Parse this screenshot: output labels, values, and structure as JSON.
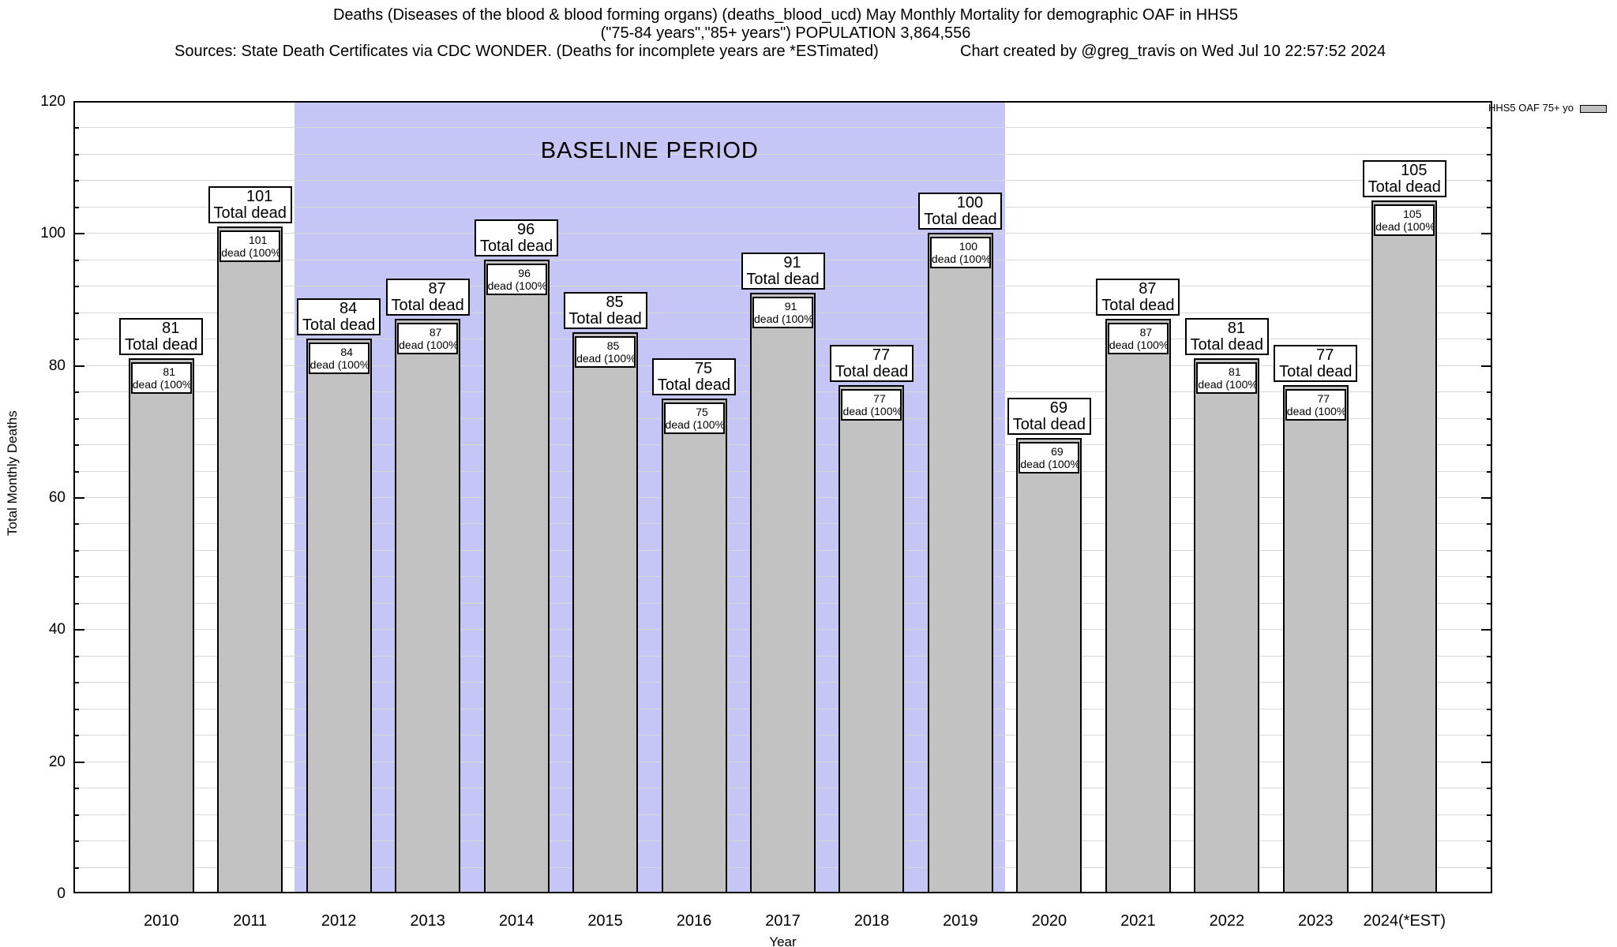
{
  "header": {
    "title_line1": "Deaths (Diseases of the blood & blood forming organs) (deaths_blood_ucd) May Monthly Mortality for demographic OAF in HHS5",
    "title_line2": "(\"75-84 years\",\"85+ years\") POPULATION 3,864,556",
    "sources": "Sources: State Death Certificates via CDC WONDER. (Deaths for incomplete years are *ESTimated)",
    "credit": "Chart created by @greg_travis on Wed Jul 10 22:57:52 2024"
  },
  "legend": {
    "label": "HHS5 OAF 75+ yo",
    "position": "top-right-outside"
  },
  "chart_data": {
    "type": "bar",
    "title": "Deaths (Diseases of the blood & blood forming organs) (deaths_blood_ucd) May Monthly Mortality for demographic OAF in HHS5",
    "subtitle": "(\"75-84 years\",\"85+ years\") POPULATION 3,864,556",
    "categories": [
      "2010",
      "2011",
      "2012",
      "2013",
      "2014",
      "2015",
      "2016",
      "2017",
      "2018",
      "2019",
      "2020",
      "2021",
      "2022",
      "2023",
      "2024(*EST)"
    ],
    "series": [
      {
        "name": "HHS5 OAF 75+ yo",
        "values": [
          81,
          101,
          84,
          87,
          96,
          85,
          75,
          91,
          77,
          100,
          69,
          87,
          81,
          77,
          105
        ]
      }
    ],
    "bar_top_label_suffix": "Total dead",
    "bar_inner_label_suffix": "dead (100%)",
    "xlabel": "Year",
    "ylabel": "Total Monthly Deaths",
    "ylim": [
      0,
      120
    ],
    "yticks_major": [
      0,
      20,
      40,
      60,
      80,
      100,
      120
    ],
    "minor_grid_step": 4,
    "grid": true,
    "baseline_region": {
      "label": "BASELINE PERIOD",
      "from_category": "2012",
      "to_category": "2019"
    },
    "colors": {
      "bar_fill": "#c2c2c2",
      "bar_border": "#000000",
      "baseline_fill": "#c6c6f6",
      "grid": "#d8d8d8",
      "text": "#000000"
    }
  }
}
